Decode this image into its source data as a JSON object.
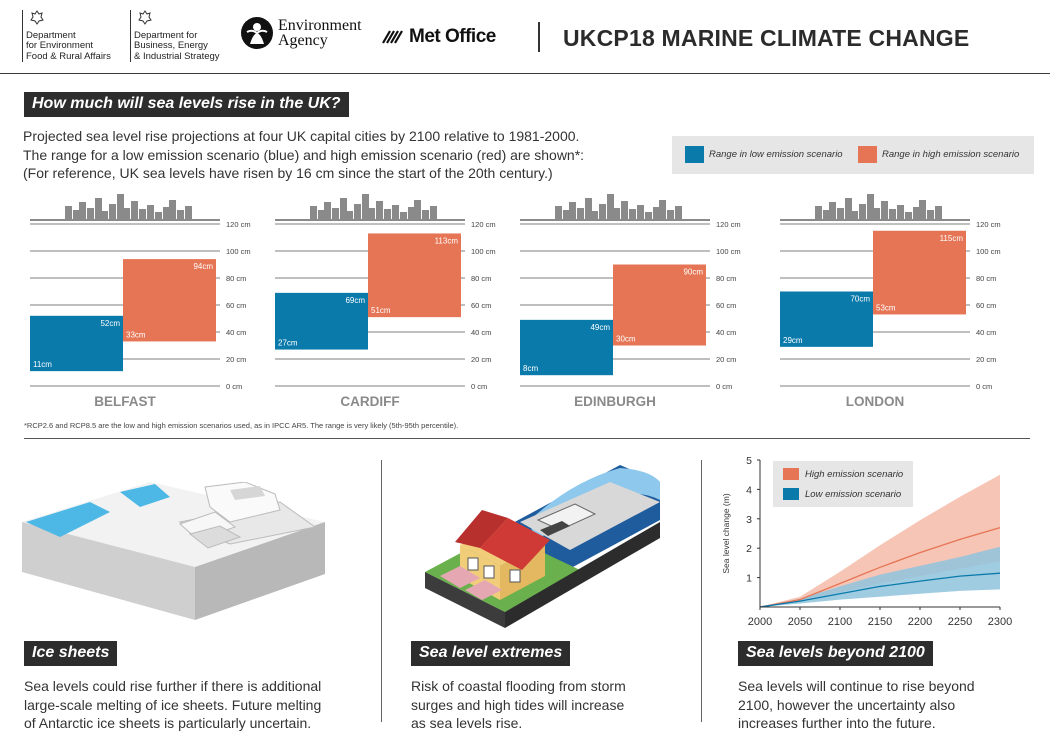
{
  "header": {
    "defra": [
      "Department",
      "for Environment",
      "Food & Rural Affairs"
    ],
    "beis": [
      "Department for",
      "Business, Energy",
      "& Industrial Strategy"
    ],
    "ea": [
      "Environment",
      "Agency"
    ],
    "met_office": "Met Office",
    "title": "UKCP18 MARINE CLIMATE CHANGE"
  },
  "top": {
    "heading": "How much will sea levels rise in the UK?",
    "intro": [
      "Projected sea level rise projections at four UK capital cities by 2100 relative to 1981-2000.",
      "The range for a low emission scenario (blue) and high emission scenario (red) are shown*:",
      "(For reference, UK sea levels have risen by 16 cm since the start of the 20th century.)"
    ],
    "legend": {
      "low": "Range in low emission scenario",
      "high": "Range in high emission scenario"
    },
    "footnote": "*RCP2.6 and RCP8.5 are the low and high emission scenarios used, as in IPCC AR5. The range is very likely (5th-95th percentile)."
  },
  "colors": {
    "low": "#0a7aab",
    "high": "#e57555",
    "low_band": "#8fc3dd",
    "high_band": "#f5c2b2",
    "gray_band": "#9fa7ad",
    "dark": "#2d2d2d",
    "city": "#8a8a8a"
  },
  "chart_data": [
    {
      "type": "bar",
      "yunit": "cm",
      "ylim": [
        0,
        120
      ],
      "yticks": [
        "0 cm",
        "20 cm",
        "40 cm",
        "60 cm",
        "80 cm",
        "100 cm",
        "120 cm"
      ],
      "categories": [
        "BELFAST",
        "CARDIFF",
        "EDINBURGH",
        "LONDON"
      ],
      "series": [
        {
          "name": "Range in low emission scenario",
          "key": "low",
          "low": [
            11,
            27,
            8,
            29
          ],
          "high": [
            52,
            69,
            49,
            70
          ],
          "low_labels": [
            "11cm",
            "27cm",
            "8cm",
            "29cm"
          ],
          "high_labels": [
            "52cm",
            "69cm",
            "49cm",
            "70cm"
          ]
        },
        {
          "name": "Range in high emission scenario",
          "key": "high",
          "low": [
            33,
            51,
            30,
            53
          ],
          "high": [
            94,
            113,
            90,
            115
          ],
          "low_labels": [
            "33cm",
            "51cm",
            "30cm",
            "53cm"
          ],
          "high_labels": [
            "94cm",
            "113cm",
            "90cm",
            "115cm"
          ]
        }
      ]
    },
    {
      "type": "line",
      "ylabel": "Sea level change (m)",
      "xlim": [
        2000,
        2300
      ],
      "ylim": [
        0,
        5
      ],
      "xticks": [
        "2000",
        "2050",
        "2100",
        "2150",
        "2200",
        "2250",
        "2300"
      ],
      "yticks": [
        "1",
        "2",
        "3",
        "4",
        "5"
      ],
      "x": [
        2000,
        2050,
        2100,
        2150,
        2200,
        2250,
        2300
      ],
      "series": [
        {
          "name": "High emission scenario",
          "key": "high",
          "median": [
            0,
            0.25,
            0.8,
            1.35,
            1.85,
            2.3,
            2.7
          ],
          "lower": [
            0,
            0.2,
            0.5,
            0.8,
            1.05,
            1.3,
            1.55
          ],
          "upper": [
            0,
            0.35,
            1.2,
            2.1,
            2.95,
            3.75,
            4.5
          ]
        },
        {
          "name": "Low emission scenario",
          "key": "low",
          "median": [
            0,
            0.2,
            0.45,
            0.7,
            0.88,
            1.05,
            1.15
          ],
          "lower": [
            0,
            0.12,
            0.25,
            0.35,
            0.45,
            0.55,
            0.6
          ],
          "upper": [
            0,
            0.28,
            0.7,
            1.1,
            1.4,
            1.7,
            2.05
          ]
        }
      ]
    }
  ],
  "sections": {
    "ice": {
      "heading": "Ice sheets",
      "text": [
        "Sea levels could rise further if there is additional",
        "large-scale melting of ice sheets. Future melting",
        "of Antarctic ice sheets is particularly uncertain."
      ]
    },
    "extremes": {
      "heading": "Sea level extremes",
      "text": [
        "Risk of coastal flooding from storm",
        "surges and high tides will increase",
        "as sea levels rise."
      ]
    },
    "beyond": {
      "heading": "Sea levels beyond 2100",
      "text": [
        "Sea levels will continue to rise beyond",
        "2100, however the uncertainty also",
        "increases further into the future."
      ]
    }
  },
  "icons": [
    "defra-crest-icon",
    "beis-crest-icon",
    "environment-agency-logo-icon",
    "met-office-logo-icon",
    "city-skyline-icon",
    "ice-sheet-illustration",
    "flooded-houses-illustration"
  ]
}
